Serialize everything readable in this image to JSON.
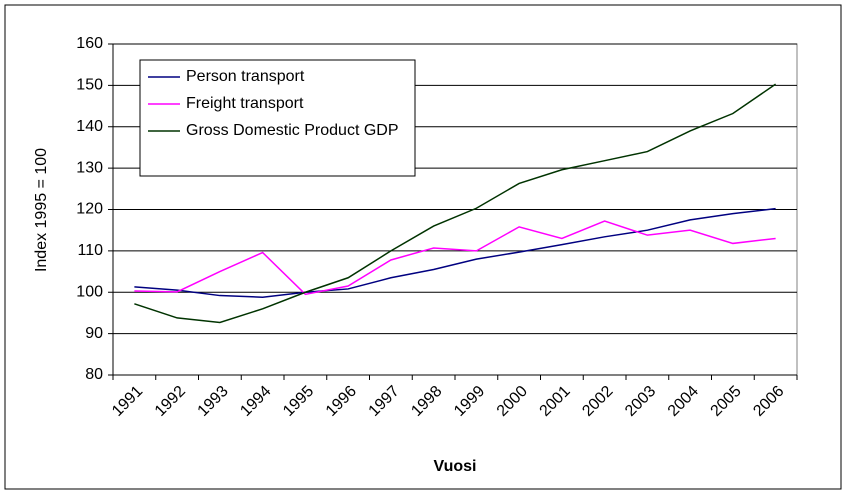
{
  "chart_data": {
    "type": "line",
    "categories": [
      "1991",
      "1992",
      "1993",
      "1994",
      "1995",
      "1996",
      "1997",
      "1998",
      "1999",
      "2000",
      "2001",
      "2002",
      "2003",
      "2004",
      "2005",
      "2006"
    ],
    "series": [
      {
        "name": "Person transport",
        "color": "#000080",
        "values": [
          101.3,
          100.5,
          99.2,
          98.8,
          100,
          100.8,
          103.5,
          105.5,
          108,
          109.7,
          111.5,
          113.4,
          115,
          117.5,
          119,
          120.2
        ]
      },
      {
        "name": "Freight transport",
        "color": "#ff00ff",
        "values": [
          100.3,
          100.1,
          105,
          109.6,
          99.5,
          101.5,
          107.8,
          110.7,
          110,
          115.8,
          113,
          117.2,
          113.8,
          115,
          111.8,
          113
        ]
      },
      {
        "name": "Gross Domestic Product GDP",
        "color": "#003300",
        "values": [
          97.2,
          93.8,
          92.7,
          96,
          100,
          103.5,
          110,
          116,
          120.3,
          126.3,
          129.6,
          131.8,
          134,
          139,
          143.2,
          150.3
        ]
      }
    ],
    "xlabel": "Vuosi",
    "ylabel": "Index 1995 = 100",
    "ylim": [
      80,
      160
    ],
    "yticks": [
      80,
      90,
      100,
      110,
      120,
      130,
      140,
      150,
      160
    ],
    "grid": true,
    "legend": "upper left"
  }
}
